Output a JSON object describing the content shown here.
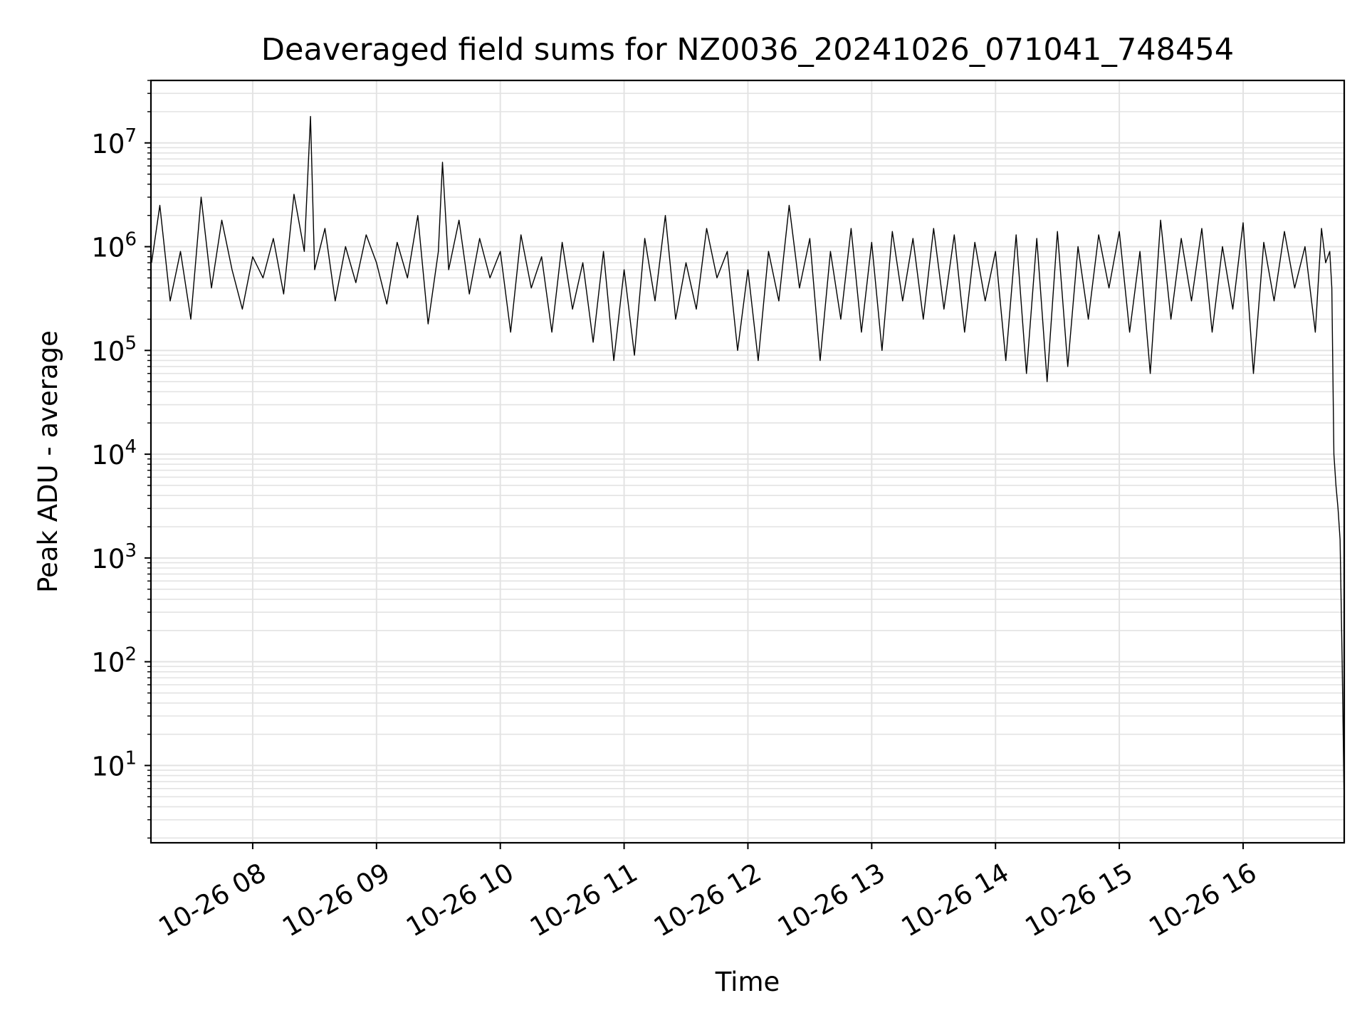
{
  "chart_data": {
    "type": "line",
    "title": "Deaveraged field sums for NZ0036_20241026_071041_748454",
    "xlabel": "Time",
    "ylabel": "Peak ADU - average",
    "yscale": "log",
    "ylim": [
      1.8,
      40000000
    ],
    "xlim": [
      "2024-10-26 07:10:41",
      "2024-10-26 16:49:00"
    ],
    "grid": true,
    "x_ticks": [
      {
        "time": "2024-10-26 08:00",
        "label": "10-26 08"
      },
      {
        "time": "2024-10-26 09:00",
        "label": "10-26 09"
      },
      {
        "time": "2024-10-26 10:00",
        "label": "10-26 10"
      },
      {
        "time": "2024-10-26 11:00",
        "label": "10-26 11"
      },
      {
        "time": "2024-10-26 12:00",
        "label": "10-26 12"
      },
      {
        "time": "2024-10-26 13:00",
        "label": "10-26 13"
      },
      {
        "time": "2024-10-26 14:00",
        "label": "10-26 14"
      },
      {
        "time": "2024-10-26 15:00",
        "label": "10-26 15"
      },
      {
        "time": "2024-10-26 16:00",
        "label": "10-26 16"
      }
    ],
    "y_ticks": [
      {
        "value": 10,
        "base": "10",
        "exp": "1"
      },
      {
        "value": 100,
        "base": "10",
        "exp": "2"
      },
      {
        "value": 1000,
        "base": "10",
        "exp": "3"
      },
      {
        "value": 10000,
        "base": "10",
        "exp": "4"
      },
      {
        "value": 100000,
        "base": "10",
        "exp": "5"
      },
      {
        "value": 1000000,
        "base": "10",
        "exp": "6"
      },
      {
        "value": 10000000,
        "base": "10",
        "exp": "7"
      }
    ],
    "line_color": "#000000",
    "grid_color": "#e3e3e3",
    "series": [
      {
        "x": [
          "2024-10-26 07:11",
          "2024-10-26 07:15",
          "2024-10-26 07:20",
          "2024-10-26 07:25",
          "2024-10-26 07:30",
          "2024-10-26 07:35",
          "2024-10-26 07:40",
          "2024-10-26 07:45",
          "2024-10-26 07:50",
          "2024-10-26 07:55",
          "2024-10-26 08:00",
          "2024-10-26 08:05",
          "2024-10-26 08:10",
          "2024-10-26 08:15",
          "2024-10-26 08:20",
          "2024-10-26 08:25",
          "2024-10-26 08:28",
          "2024-10-26 08:30",
          "2024-10-26 08:35",
          "2024-10-26 08:40",
          "2024-10-26 08:45",
          "2024-10-26 08:50",
          "2024-10-26 08:55",
          "2024-10-26 09:00",
          "2024-10-26 09:05",
          "2024-10-26 09:10",
          "2024-10-26 09:15",
          "2024-10-26 09:20",
          "2024-10-26 09:25",
          "2024-10-26 09:30",
          "2024-10-26 09:32",
          "2024-10-26 09:35",
          "2024-10-26 09:40",
          "2024-10-26 09:45",
          "2024-10-26 09:50",
          "2024-10-26 09:55",
          "2024-10-26 10:00",
          "2024-10-26 10:05",
          "2024-10-26 10:10",
          "2024-10-26 10:15",
          "2024-10-26 10:20",
          "2024-10-26 10:25",
          "2024-10-26 10:30",
          "2024-10-26 10:35",
          "2024-10-26 10:40",
          "2024-10-26 10:45",
          "2024-10-26 10:50",
          "2024-10-26 10:55",
          "2024-10-26 11:00",
          "2024-10-26 11:05",
          "2024-10-26 11:10",
          "2024-10-26 11:15",
          "2024-10-26 11:20",
          "2024-10-26 11:25",
          "2024-10-26 11:30",
          "2024-10-26 11:35",
          "2024-10-26 11:40",
          "2024-10-26 11:45",
          "2024-10-26 11:50",
          "2024-10-26 11:55",
          "2024-10-26 12:00",
          "2024-10-26 12:05",
          "2024-10-26 12:10",
          "2024-10-26 12:15",
          "2024-10-26 12:20",
          "2024-10-26 12:25",
          "2024-10-26 12:30",
          "2024-10-26 12:35",
          "2024-10-26 12:40",
          "2024-10-26 12:45",
          "2024-10-26 12:50",
          "2024-10-26 12:55",
          "2024-10-26 13:00",
          "2024-10-26 13:05",
          "2024-10-26 13:10",
          "2024-10-26 13:15",
          "2024-10-26 13:20",
          "2024-10-26 13:25",
          "2024-10-26 13:30",
          "2024-10-26 13:35",
          "2024-10-26 13:40",
          "2024-10-26 13:45",
          "2024-10-26 13:50",
          "2024-10-26 13:55",
          "2024-10-26 14:00",
          "2024-10-26 14:05",
          "2024-10-26 14:10",
          "2024-10-26 14:15",
          "2024-10-26 14:20",
          "2024-10-26 14:25",
          "2024-10-26 14:30",
          "2024-10-26 14:35",
          "2024-10-26 14:40",
          "2024-10-26 14:45",
          "2024-10-26 14:50",
          "2024-10-26 14:55",
          "2024-10-26 15:00",
          "2024-10-26 15:05",
          "2024-10-26 15:10",
          "2024-10-26 15:15",
          "2024-10-26 15:20",
          "2024-10-26 15:25",
          "2024-10-26 15:30",
          "2024-10-26 15:35",
          "2024-10-26 15:40",
          "2024-10-26 15:45",
          "2024-10-26 15:50",
          "2024-10-26 15:55",
          "2024-10-26 16:00",
          "2024-10-26 16:05",
          "2024-10-26 16:10",
          "2024-10-26 16:15",
          "2024-10-26 16:20",
          "2024-10-26 16:25",
          "2024-10-26 16:30",
          "2024-10-26 16:35",
          "2024-10-26 16:38",
          "2024-10-26 16:40",
          "2024-10-26 16:42",
          "2024-10-26 16:43",
          "2024-10-26 16:44",
          "2024-10-26 16:45",
          "2024-10-26 16:46",
          "2024-10-26 16:47",
          "2024-10-26 16:48",
          "2024-10-26 16:49"
        ],
        "y": [
          700000,
          2500000,
          300000,
          900000,
          200000,
          3000000,
          400000,
          1800000,
          600000,
          250000,
          800000,
          500000,
          1200000,
          350000,
          3200000,
          900000,
          18000000,
          600000,
          1500000,
          300000,
          1000000,
          450000,
          1300000,
          700000,
          280000,
          1100000,
          500000,
          2000000,
          180000,
          900000,
          6500000,
          600000,
          1800000,
          350000,
          1200000,
          500000,
          900000,
          150000,
          1300000,
          400000,
          800000,
          150000,
          1100000,
          250000,
          700000,
          120000,
          900000,
          80000,
          600000,
          90000,
          1200000,
          300000,
          2000000,
          200000,
          700000,
          250000,
          1500000,
          500000,
          900000,
          100000,
          600000,
          80000,
          900000,
          300000,
          2500000,
          400000,
          1200000,
          80000,
          900000,
          200000,
          1500000,
          150000,
          1100000,
          100000,
          1400000,
          300000,
          1200000,
          200000,
          1500000,
          250000,
          1300000,
          150000,
          1100000,
          300000,
          900000,
          80000,
          1300000,
          60000,
          1200000,
          50000,
          1400000,
          70000,
          1000000,
          200000,
          1300000,
          400000,
          1400000,
          150000,
          900000,
          60000,
          1800000,
          200000,
          1200000,
          300000,
          1500000,
          150000,
          1000000,
          250000,
          1700000,
          60000,
          1100000,
          300000,
          1400000,
          400000,
          1000000,
          150000,
          1500000,
          700000,
          900000,
          400000,
          10000,
          5000,
          3000,
          1500,
          100,
          4
        ]
      }
    ]
  }
}
